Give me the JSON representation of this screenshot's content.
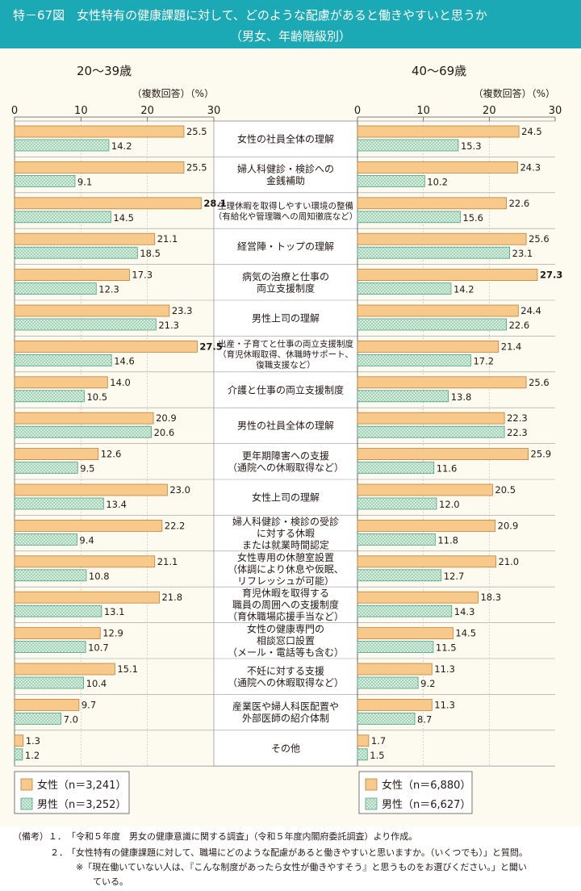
{
  "header": {
    "title_line1": "特－67図　女性特有の健康課題に対して、どのような配慮があると働きやすいと思うか",
    "title_line2": "（男女、年齢階級別）"
  },
  "colors": {
    "header_bg": "#1aa9b5",
    "panel_bg": "#fdfbef",
    "female_fill": "#f7c98b",
    "female_stroke": "#c07f3a",
    "male_fill": "#d8ecd6",
    "male_dot": "#5fb6a4",
    "male_stroke": "#4e9f8d"
  },
  "chart_data": [
    {
      "type": "bar",
      "orientation": "horizontal",
      "title": "20～39歳",
      "unit_label": "（複数回答）（%）",
      "xlim": [
        0,
        30
      ],
      "ticks": [
        "0",
        "10",
        "20",
        "30"
      ],
      "categories": [
        "女性の社員全体の理解",
        "婦人科健診・検診への\n金銭補助",
        "生理休暇を取得しやすい環境の整備\n（有給化や管理職への周知徹底など）",
        "経営陣・トップの理解",
        "病気の治療と仕事の\n両立支援制度",
        "男性上司の理解",
        "出産・子育てと仕事の両立支援制度\n（育児休暇取得、休職時サポート、\n復職支援など）",
        "介護と仕事の両立支援制度",
        "男性の社員全体の理解",
        "更年期障害への支援\n（通院への休暇取得など）",
        "女性上司の理解",
        "婦人科健診・検診の受診\nに対する休暇\nまたは就業時間認定",
        "女性専用の休憩室設置\n（体調により休息や仮眠、\nリフレッシュが可能）",
        "育児休暇を取得する\n職員の周囲への支援制度\n（育休職場応援手当など）",
        "女性の健康専門の\n相談窓口設置\n（メール・電話等も含む）",
        "不妊に対する支援\n（通院への休暇取得など）",
        "産業医や婦人科医配置や\n外部医師の紹介体制",
        "その他"
      ],
      "series": [
        {
          "name": "女性",
          "values": [
            25.5,
            25.5,
            28.1,
            21.1,
            17.3,
            23.3,
            27.5,
            14.0,
            20.9,
            12.6,
            23.0,
            22.2,
            21.1,
            21.8,
            12.9,
            15.1,
            9.7,
            1.3
          ],
          "labels": [
            "25.5",
            "25.5",
            "28.1",
            "21.1",
            "17.3",
            "23.3",
            "27.5",
            "14.0",
            "20.9",
            "12.6",
            "23.0",
            "22.2",
            "21.1",
            "21.8",
            "12.9",
            "15.1",
            "9.7",
            "1.3"
          ],
          "bold": [
            false,
            false,
            true,
            false,
            false,
            false,
            true,
            false,
            false,
            false,
            false,
            false,
            false,
            false,
            false,
            false,
            false,
            false
          ]
        },
        {
          "name": "男性",
          "values": [
            14.2,
            9.1,
            14.5,
            18.5,
            12.3,
            21.3,
            14.6,
            10.5,
            20.6,
            9.5,
            13.4,
            9.4,
            10.8,
            13.1,
            10.7,
            10.4,
            7.0,
            1.2
          ],
          "labels": [
            "14.2",
            "9.1",
            "14.5",
            "18.5",
            "12.3",
            "21.3",
            "14.6",
            "10.5",
            "20.6",
            "9.5",
            "13.4",
            "9.4",
            "10.8",
            "13.1",
            "10.7",
            "10.4",
            "7.0",
            "1.2"
          ],
          "bold": [
            false,
            false,
            false,
            false,
            false,
            false,
            false,
            false,
            false,
            false,
            false,
            false,
            false,
            false,
            false,
            false,
            false,
            false
          ]
        }
      ],
      "legend": [
        {
          "name": "女性",
          "n": "（n＝3,241）"
        },
        {
          "name": "男性",
          "n": "（n＝3,252）"
        }
      ]
    },
    {
      "type": "bar",
      "orientation": "horizontal",
      "title": "40～69歳",
      "unit_label": "（複数回答）（%）",
      "xlim": [
        0,
        30
      ],
      "ticks": [
        "0",
        "10",
        "20",
        "30"
      ],
      "series": [
        {
          "name": "女性",
          "values": [
            24.5,
            24.3,
            22.6,
            25.6,
            27.3,
            24.4,
            21.4,
            25.6,
            22.3,
            25.9,
            20.5,
            20.9,
            21.0,
            18.3,
            14.5,
            11.3,
            11.3,
            1.7
          ],
          "labels": [
            "24.5",
            "24.3",
            "22.6",
            "25.6",
            "27.3",
            "24.4",
            "21.4",
            "25.6",
            "22.3",
            "25.9",
            "20.5",
            "20.9",
            "21.0",
            "18.3",
            "14.5",
            "11.3",
            "11.3",
            "1.7"
          ],
          "bold": [
            false,
            false,
            false,
            false,
            true,
            false,
            false,
            false,
            false,
            false,
            false,
            false,
            false,
            false,
            false,
            false,
            false,
            false
          ]
        },
        {
          "name": "男性",
          "values": [
            15.3,
            10.2,
            15.6,
            23.1,
            14.2,
            22.6,
            17.2,
            13.8,
            22.3,
            11.6,
            12.0,
            11.8,
            12.7,
            14.3,
            11.5,
            9.2,
            8.7,
            1.5
          ],
          "labels": [
            "15.3",
            "10.2",
            "15.6",
            "23.1",
            "14.2",
            "22.6",
            "17.2",
            "13.8",
            "22.3",
            "11.6",
            "12.0",
            "11.8",
            "12.7",
            "14.3",
            "11.5",
            "9.2",
            "8.7",
            "1.5"
          ],
          "bold": [
            false,
            false,
            false,
            false,
            false,
            false,
            false,
            false,
            false,
            false,
            false,
            false,
            false,
            false,
            false,
            false,
            false,
            false
          ]
        }
      ],
      "legend": [
        {
          "name": "女性",
          "n": "（n＝6,880）"
        },
        {
          "name": "男性",
          "n": "（n＝6,627）"
        }
      ]
    }
  ],
  "notes": {
    "line1_prefix": "（備考）１．",
    "line1": "「令和５年度　男女の健康意識に関する調査」（令和５年度内閣府委託調査）より作成。",
    "line2_prefix": "２．",
    "line2": "「女性特有の健康課題に対して、職場にどのような配慮があると働きやすいと思いますか。（いくつでも）」と質問。",
    "line3": "※「現在働いていない人は、『こんな制度があったら女性が働きやすそう』と思うものをお選びください。」と聞い",
    "line4": "ている。"
  }
}
